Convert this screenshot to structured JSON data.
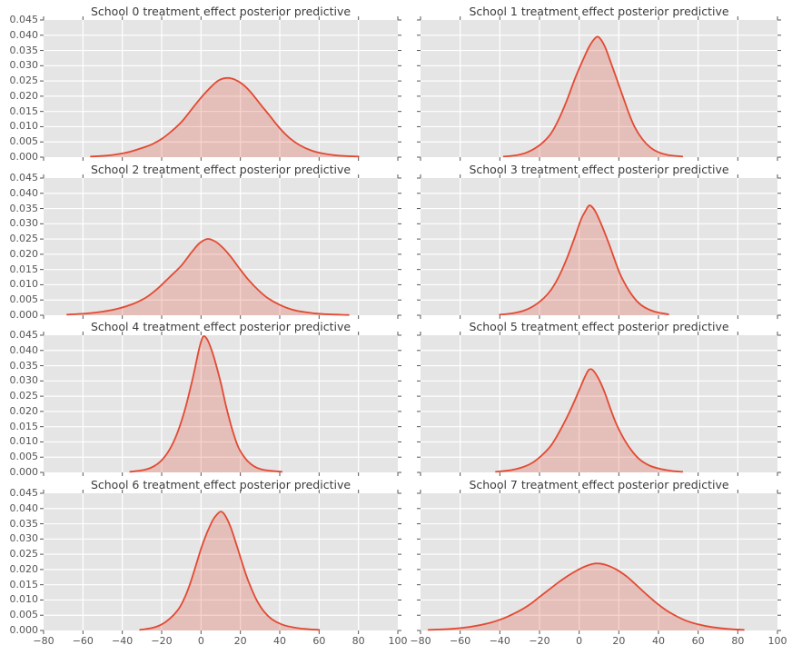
{
  "figure": {
    "background": "#ffffff",
    "axes_background": "#e5e5e5",
    "grid_color": "#ffffff",
    "line_color": "#e24a33",
    "fill_color": "rgba(226,74,51,0.25)",
    "tick_mark_color": "#555555",
    "tick_label_color": "#555555",
    "title_color": "#3b3b3b"
  },
  "chart_data": {
    "type": "area",
    "subtype": "kde-density",
    "layout": {
      "rows": 4,
      "cols": 2
    },
    "grid": true,
    "legend": "none",
    "xlabel": "",
    "ylabel": "",
    "xlim": [
      -80,
      100
    ],
    "ylim": [
      0,
      0.045
    ],
    "xticks": [
      -80,
      -60,
      -40,
      -20,
      0,
      20,
      40,
      60,
      80,
      100
    ],
    "yticks": [
      0.0,
      0.005,
      0.01,
      0.015,
      0.02,
      0.025,
      0.03,
      0.035,
      0.04,
      0.045
    ],
    "xtick_labels": [
      "−80",
      "−60",
      "−40",
      "−20",
      "0",
      "20",
      "40",
      "60",
      "80",
      "100"
    ],
    "ytick_labels": [
      "0.000",
      "0.005",
      "0.010",
      "0.015",
      "0.020",
      "0.025",
      "0.030",
      "0.035",
      "0.040",
      "0.045"
    ],
    "ytick_labels_on": "left-column-only",
    "xtick_labels_on": "bottom-row-only",
    "subplots": [
      {
        "title": "School 0 treatment effect posterior predictive",
        "peak": {
          "x": 13,
          "density": 0.026
        },
        "points": [
          [
            -56,
            0.0002
          ],
          [
            -48,
            0.0005
          ],
          [
            -42,
            0.001
          ],
          [
            -36,
            0.0018
          ],
          [
            -30,
            0.003
          ],
          [
            -25,
            0.0042
          ],
          [
            -20,
            0.006
          ],
          [
            -15,
            0.0085
          ],
          [
            -10,
            0.0115
          ],
          [
            -5,
            0.0155
          ],
          [
            0,
            0.0195
          ],
          [
            5,
            0.023
          ],
          [
            9,
            0.0252
          ],
          [
            13,
            0.026
          ],
          [
            17,
            0.0255
          ],
          [
            21,
            0.024
          ],
          [
            25,
            0.0215
          ],
          [
            30,
            0.0175
          ],
          [
            35,
            0.0135
          ],
          [
            40,
            0.0095
          ],
          [
            45,
            0.0063
          ],
          [
            50,
            0.004
          ],
          [
            56,
            0.0022
          ],
          [
            62,
            0.0012
          ],
          [
            70,
            0.0005
          ],
          [
            80,
            0.0002
          ]
        ]
      },
      {
        "title": "School 1 treatment effect posterior predictive",
        "peak": {
          "x": 9,
          "density": 0.039
        },
        "points": [
          [
            -38,
            0.0002
          ],
          [
            -32,
            0.0006
          ],
          [
            -27,
            0.0014
          ],
          [
            -22,
            0.003
          ],
          [
            -18,
            0.005
          ],
          [
            -14,
            0.008
          ],
          [
            -10,
            0.0128
          ],
          [
            -6,
            0.019
          ],
          [
            -2,
            0.026
          ],
          [
            2,
            0.032
          ],
          [
            5,
            0.0362
          ],
          [
            8,
            0.039
          ],
          [
            10,
            0.0393
          ],
          [
            13,
            0.0362
          ],
          [
            16,
            0.031
          ],
          [
            19,
            0.0255
          ],
          [
            22,
            0.02
          ],
          [
            25,
            0.0145
          ],
          [
            28,
            0.0099
          ],
          [
            32,
            0.0058
          ],
          [
            36,
            0.0031
          ],
          [
            40,
            0.0016
          ],
          [
            45,
            0.0007
          ],
          [
            52,
            0.0002
          ]
        ]
      },
      {
        "title": "School 2 treatment effect posterior predictive",
        "peak": {
          "x": 3,
          "density": 0.025
        },
        "points": [
          [
            -68,
            0.0002
          ],
          [
            -58,
            0.0006
          ],
          [
            -50,
            0.0012
          ],
          [
            -42,
            0.0022
          ],
          [
            -35,
            0.0036
          ],
          [
            -28,
            0.0058
          ],
          [
            -22,
            0.0088
          ],
          [
            -16,
            0.0125
          ],
          [
            -10,
            0.0163
          ],
          [
            -5,
            0.0205
          ],
          [
            -1,
            0.0235
          ],
          [
            3,
            0.025
          ],
          [
            7,
            0.0243
          ],
          [
            11,
            0.0222
          ],
          [
            15,
            0.0193
          ],
          [
            19,
            0.0158
          ],
          [
            24,
            0.0117
          ],
          [
            29,
            0.0083
          ],
          [
            34,
            0.0056
          ],
          [
            40,
            0.0034
          ],
          [
            46,
            0.0019
          ],
          [
            53,
            0.001
          ],
          [
            62,
            0.0004
          ],
          [
            75,
            0.0001
          ]
        ]
      },
      {
        "title": "School 3 treatment effect posterior predictive",
        "peak": {
          "x": 5,
          "density": 0.036
        },
        "points": [
          [
            -40,
            0.0002
          ],
          [
            -34,
            0.0006
          ],
          [
            -28,
            0.0015
          ],
          [
            -23,
            0.003
          ],
          [
            -18,
            0.0055
          ],
          [
            -14,
            0.0085
          ],
          [
            -10,
            0.013
          ],
          [
            -6,
            0.019
          ],
          [
            -2,
            0.026
          ],
          [
            1,
            0.0315
          ],
          [
            3,
            0.034
          ],
          [
            5,
            0.036
          ],
          [
            7,
            0.0352
          ],
          [
            9,
            0.033
          ],
          [
            12,
            0.0285
          ],
          [
            15,
            0.0235
          ],
          [
            18,
            0.018
          ],
          [
            21,
            0.013
          ],
          [
            25,
            0.0082
          ],
          [
            29,
            0.0047
          ],
          [
            33,
            0.0026
          ],
          [
            38,
            0.0012
          ],
          [
            45,
            0.0003
          ]
        ]
      },
      {
        "title": "School 4 treatment effect posterior predictive",
        "peak": {
          "x": 1,
          "density": 0.0445
        },
        "points": [
          [
            -36,
            0.0002
          ],
          [
            -29,
            0.0008
          ],
          [
            -24,
            0.002
          ],
          [
            -20,
            0.004
          ],
          [
            -16,
            0.0075
          ],
          [
            -12,
            0.013
          ],
          [
            -8,
            0.021
          ],
          [
            -4,
            0.0315
          ],
          [
            -1,
            0.0405
          ],
          [
            1,
            0.0445
          ],
          [
            3,
            0.0438
          ],
          [
            5,
            0.0408
          ],
          [
            7,
            0.0368
          ],
          [
            10,
            0.0295
          ],
          [
            13,
            0.021
          ],
          [
            16,
            0.0138
          ],
          [
            19,
            0.0082
          ],
          [
            23,
            0.0042
          ],
          [
            27,
            0.002
          ],
          [
            32,
            0.0008
          ],
          [
            41,
            0.0002
          ]
        ]
      },
      {
        "title": "School 5 treatment effect posterior predictive",
        "peak": {
          "x": 4,
          "density": 0.034
        },
        "points": [
          [
            -42,
            0.0002
          ],
          [
            -35,
            0.0007
          ],
          [
            -29,
            0.0016
          ],
          [
            -24,
            0.003
          ],
          [
            -19,
            0.0055
          ],
          [
            -14,
            0.009
          ],
          [
            -9,
            0.0145
          ],
          [
            -4,
            0.021
          ],
          [
            0,
            0.027
          ],
          [
            3,
            0.0315
          ],
          [
            5,
            0.0337
          ],
          [
            7,
            0.0335
          ],
          [
            10,
            0.0305
          ],
          [
            13,
            0.026
          ],
          [
            16,
            0.0205
          ],
          [
            19,
            0.0155
          ],
          [
            23,
            0.0105
          ],
          [
            27,
            0.0067
          ],
          [
            31,
            0.004
          ],
          [
            36,
            0.0021
          ],
          [
            42,
            0.001
          ],
          [
            48,
            0.0004
          ],
          [
            52,
            0.0002
          ]
        ]
      },
      {
        "title": "School 6 treatment effect posterior predictive",
        "peak": {
          "x": 10,
          "density": 0.039
        },
        "points": [
          [
            -31,
            0.0002
          ],
          [
            -25,
            0.0008
          ],
          [
            -20,
            0.002
          ],
          [
            -16,
            0.0038
          ],
          [
            -12,
            0.0065
          ],
          [
            -9,
            0.0098
          ],
          [
            -6,
            0.0145
          ],
          [
            -3,
            0.0205
          ],
          [
            0,
            0.0268
          ],
          [
            3,
            0.032
          ],
          [
            6,
            0.0362
          ],
          [
            8,
            0.038
          ],
          [
            10,
            0.039
          ],
          [
            12,
            0.038
          ],
          [
            15,
            0.034
          ],
          [
            18,
            0.0282
          ],
          [
            21,
            0.022
          ],
          [
            24,
            0.0163
          ],
          [
            28,
            0.0103
          ],
          [
            32,
            0.0062
          ],
          [
            36,
            0.0037
          ],
          [
            41,
            0.002
          ],
          [
            47,
            0.001
          ],
          [
            53,
            0.0005
          ],
          [
            60,
            0.0002
          ]
        ]
      },
      {
        "title": "School 7 treatment effect posterior predictive",
        "peak": {
          "x": 9,
          "density": 0.022
        },
        "points": [
          [
            -76,
            0.0002
          ],
          [
            -65,
            0.0005
          ],
          [
            -55,
            0.0012
          ],
          [
            -45,
            0.0025
          ],
          [
            -38,
            0.004
          ],
          [
            -30,
            0.0065
          ],
          [
            -25,
            0.0085
          ],
          [
            -20,
            0.011
          ],
          [
            -15,
            0.0135
          ],
          [
            -10,
            0.016
          ],
          [
            -5,
            0.0182
          ],
          [
            0,
            0.0201
          ],
          [
            5,
            0.0215
          ],
          [
            9,
            0.022
          ],
          [
            14,
            0.0214
          ],
          [
            19,
            0.0199
          ],
          [
            24,
            0.0177
          ],
          [
            29,
            0.0148
          ],
          [
            34,
            0.0118
          ],
          [
            39,
            0.009
          ],
          [
            44,
            0.0066
          ],
          [
            49,
            0.0047
          ],
          [
            54,
            0.0032
          ],
          [
            60,
            0.002
          ],
          [
            67,
            0.0011
          ],
          [
            75,
            0.0005
          ],
          [
            83,
            0.0002
          ]
        ]
      }
    ]
  }
}
